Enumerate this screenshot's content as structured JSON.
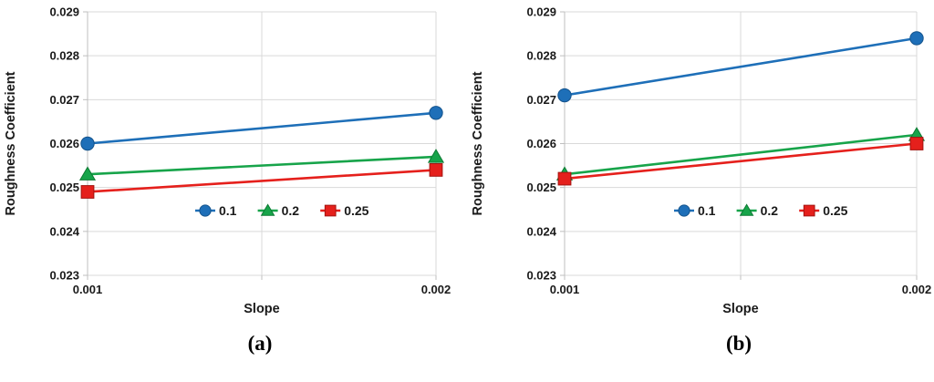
{
  "palette": {
    "background": "#FFFFFF",
    "gridline": "#D9D9D9",
    "axis_line": "#BFBFBF",
    "tick_text": "#1A1A1A",
    "caption_text": "#000000"
  },
  "chart_data": [
    {
      "type": "line",
      "panel_label": "(a)",
      "xlabel": "Slope",
      "ylabel": "Roughness Coefficient",
      "xlim": [
        0.001,
        0.002
      ],
      "ylim": [
        0.023,
        0.029
      ],
      "grid": true,
      "legend_position": "inside-bottom-center",
      "xticks": [
        {
          "value": 0.001,
          "label": "0.001"
        },
        {
          "value": 0.002,
          "label": "0.002"
        }
      ],
      "yticks": [
        {
          "value": 0.023,
          "label": "0.023"
        },
        {
          "value": 0.024,
          "label": "0.024"
        },
        {
          "value": 0.025,
          "label": "0.025"
        },
        {
          "value": 0.026,
          "label": "0.026"
        },
        {
          "value": 0.027,
          "label": "0.027"
        },
        {
          "value": 0.028,
          "label": "0.028"
        },
        {
          "value": 0.029,
          "label": "0.029"
        }
      ],
      "x": [
        0.001,
        0.002
      ],
      "series": [
        {
          "name": "0.1",
          "marker": "circle",
          "color": "#1E6FB8",
          "edge": "#14538C",
          "values": [
            0.026,
            0.0267
          ]
        },
        {
          "name": "0.2",
          "marker": "triangle",
          "color": "#17A44A",
          "edge": "#0D7A33",
          "values": [
            0.0253,
            0.0257
          ]
        },
        {
          "name": "0.25",
          "marker": "square",
          "color": "#E5201C",
          "edge": "#A31310",
          "values": [
            0.0249,
            0.0254
          ]
        }
      ]
    },
    {
      "type": "line",
      "panel_label": "(b)",
      "xlabel": "Slope",
      "ylabel": "Roughness Coefficient",
      "xlim": [
        0.001,
        0.002
      ],
      "ylim": [
        0.023,
        0.029
      ],
      "grid": true,
      "legend_position": "inside-bottom-center",
      "xticks": [
        {
          "value": 0.001,
          "label": "0.001"
        },
        {
          "value": 0.002,
          "label": "0.002"
        }
      ],
      "yticks": [
        {
          "value": 0.023,
          "label": "0.023"
        },
        {
          "value": 0.024,
          "label": "0.024"
        },
        {
          "value": 0.025,
          "label": "0.025"
        },
        {
          "value": 0.026,
          "label": "0.026"
        },
        {
          "value": 0.027,
          "label": "0.027"
        },
        {
          "value": 0.028,
          "label": "0.028"
        },
        {
          "value": 0.029,
          "label": "0.029"
        }
      ],
      "x": [
        0.001,
        0.002
      ],
      "series": [
        {
          "name": "0.1",
          "marker": "circle",
          "color": "#1E6FB8",
          "edge": "#14538C",
          "values": [
            0.0271,
            0.0284
          ]
        },
        {
          "name": "0.2",
          "marker": "triangle",
          "color": "#17A44A",
          "edge": "#0D7A33",
          "values": [
            0.0253,
            0.0262
          ]
        },
        {
          "name": "0.25",
          "marker": "square",
          "color": "#E5201C",
          "edge": "#A31310",
          "values": [
            0.0252,
            0.026
          ]
        }
      ]
    }
  ]
}
